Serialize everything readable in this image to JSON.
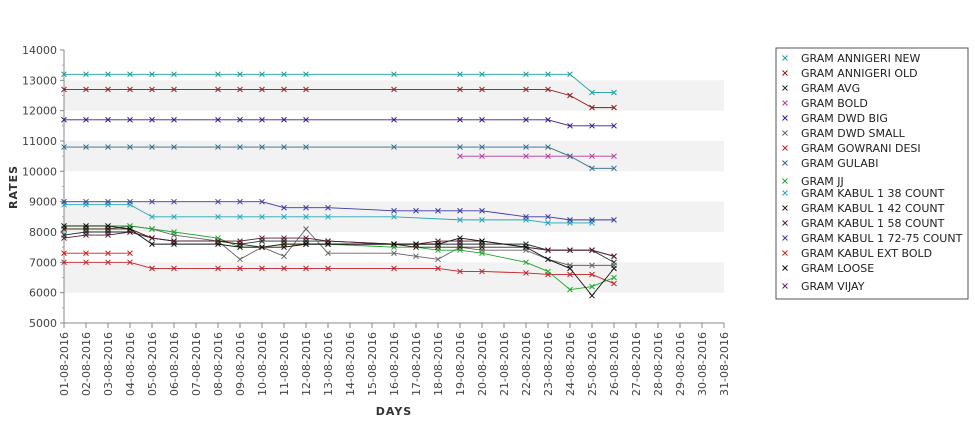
{
  "chart_data": {
    "type": "line",
    "title": "",
    "xlabel": "DAYS",
    "ylabel": "RATES",
    "ylim": [
      5000,
      14000
    ],
    "y_ticks": [
      5000,
      6000,
      7000,
      8000,
      9000,
      10000,
      11000,
      12000,
      13000,
      14000
    ],
    "grid": "alternating horizontal bands",
    "legend_position": "right",
    "categories": [
      "01-08-2016",
      "02-08-2016",
      "03-08-2016",
      "04-08-2016",
      "05-08-2016",
      "06-08-2016",
      "07-08-2016",
      "08-08-2016",
      "09-08-2016",
      "10-08-2016",
      "11-08-2016",
      "12-08-2016",
      "13-08-2016",
      "14-08-2016",
      "15-08-2016",
      "16-08-2016",
      "17-08-2016",
      "18-08-2016",
      "19-08-2016",
      "20-08-2016",
      "21-08-2016",
      "22-08-2016",
      "23-08-2016",
      "24-08-2016",
      "25-08-2016",
      "26-08-2016",
      "27-08-2016",
      "28-08-2016",
      "29-08-2016",
      "30-08-2016",
      "31-08-2016"
    ],
    "series": [
      {
        "name": "GRAM ANNIGERI NEW",
        "color": "#1a9e9e",
        "values": [
          13200,
          13200,
          13200,
          13200,
          13200,
          13200,
          null,
          13200,
          13200,
          13200,
          13200,
          13200,
          null,
          null,
          null,
          13200,
          null,
          null,
          13200,
          13200,
          null,
          13200,
          13200,
          13200,
          12600,
          12600,
          null,
          null,
          null,
          null,
          null
        ]
      },
      {
        "name": "GRAM ANNIGERI OLD",
        "color": "#8b1a1a",
        "values": [
          12700,
          12700,
          12700,
          12700,
          12700,
          12700,
          null,
          12700,
          12700,
          12700,
          12700,
          12700,
          null,
          null,
          null,
          12700,
          null,
          null,
          12700,
          12700,
          null,
          12700,
          12700,
          12500,
          12100,
          12100,
          null,
          null,
          null,
          null,
          null
        ]
      },
      {
        "name": "GRAM AVG",
        "color": "#1a3333",
        "values": [
          7900,
          8000,
          8000,
          8000,
          7800,
          7700,
          null,
          7700,
          7600,
          7700,
          7700,
          7700,
          7700,
          null,
          null,
          7600,
          7600,
          7600,
          7600,
          7600,
          null,
          7600,
          7400,
          7400,
          7400,
          7000,
          null,
          null,
          null,
          null,
          null
        ]
      },
      {
        "name": "GRAM BOLD",
        "color": "#b23a9c",
        "values": [
          null,
          null,
          null,
          null,
          null,
          null,
          null,
          null,
          null,
          null,
          null,
          null,
          null,
          null,
          null,
          null,
          null,
          null,
          10500,
          10500,
          null,
          10500,
          10500,
          10500,
          10500,
          10500,
          null,
          null,
          null,
          null,
          null
        ]
      },
      {
        "name": "GRAM DWD BIG",
        "color": "#3d1a8a",
        "values": [
          11700,
          11700,
          11700,
          11700,
          11700,
          11700,
          null,
          11700,
          11700,
          11700,
          11700,
          11700,
          null,
          null,
          null,
          11700,
          null,
          null,
          11700,
          11700,
          null,
          11700,
          11700,
          11500,
          11500,
          11500,
          null,
          null,
          null,
          null,
          null
        ]
      },
      {
        "name": "GRAM DWD SMALL",
        "color": "#666666",
        "values": [
          8100,
          8100,
          8100,
          8200,
          8100,
          7900,
          null,
          7700,
          7100,
          7500,
          7200,
          8100,
          7300,
          null,
          null,
          7300,
          7200,
          7100,
          7500,
          7400,
          null,
          7400,
          7100,
          6900,
          6900,
          6900,
          null,
          null,
          null,
          null,
          null
        ]
      },
      {
        "name": "GRAM GOWRANI DESI",
        "color": "#c0202a",
        "values": [
          7000,
          7000,
          7000,
          7000,
          6800,
          6800,
          null,
          6800,
          6800,
          6800,
          6800,
          6800,
          6800,
          null,
          null,
          6800,
          null,
          6800,
          6700,
          6700,
          null,
          6650,
          6600,
          6600,
          6600,
          6300,
          null,
          null,
          null,
          null,
          null
        ]
      },
      {
        "name": "GRAM GULABI",
        "color": "#2e6b8a",
        "values": [
          10800,
          10800,
          10800,
          10800,
          10800,
          10800,
          null,
          10800,
          10800,
          10800,
          10800,
          10800,
          null,
          null,
          null,
          10800,
          null,
          null,
          10800,
          10800,
          null,
          10800,
          10800,
          10500,
          10100,
          10100,
          null,
          null,
          null,
          null,
          null
        ]
      },
      {
        "name": "GRAM JJ",
        "color": "#1fa82a",
        "values": [
          8200,
          8200,
          8200,
          8200,
          8100,
          8000,
          null,
          7800,
          7500,
          7500,
          7600,
          7600,
          7600,
          null,
          null,
          7500,
          7500,
          7400,
          7400,
          7300,
          null,
          7000,
          6700,
          6100,
          6200,
          6500,
          null,
          null,
          null,
          null,
          null
        ]
      },
      {
        "name": "GRAM KABUL 1 38 COUNT",
        "color": "#22a6b8",
        "values": [
          8900,
          8900,
          8900,
          8900,
          8500,
          8500,
          null,
          8500,
          8500,
          8500,
          8500,
          8500,
          8500,
          null,
          null,
          8500,
          null,
          null,
          8400,
          8400,
          null,
          8400,
          8300,
          8300,
          8300,
          null,
          null,
          null,
          null,
          null,
          null
        ]
      },
      {
        "name": "GRAM KABUL 1 42 COUNT",
        "color": "#3a2010",
        "values": [
          8100,
          8100,
          8100,
          8100,
          7800,
          7700,
          null,
          7700,
          7600,
          7500,
          7600,
          7600,
          7600,
          null,
          null,
          7600,
          7500,
          7500,
          7500,
          7500,
          null,
          7500,
          7400,
          7400,
          7400,
          7200,
          null,
          null,
          null,
          null,
          null
        ]
      },
      {
        "name": "GRAM KABUL 1 58 COUNT",
        "color": "#5a1a30",
        "values": [
          7800,
          7900,
          7900,
          8000,
          7800,
          7700,
          null,
          7700,
          7700,
          7800,
          7800,
          7800,
          7700,
          null,
          null,
          7600,
          7600,
          7700,
          7700,
          7700,
          null,
          7500,
          7400,
          7400,
          7400,
          7200,
          null,
          null,
          null,
          null,
          null
        ]
      },
      {
        "name": "GRAM KABUL 1 72-75 COUNT",
        "color": "#3a3aa0",
        "values": [
          9000,
          9000,
          9000,
          9000,
          9000,
          9000,
          null,
          9000,
          9000,
          9000,
          8800,
          8800,
          8800,
          null,
          null,
          8700,
          8700,
          8700,
          8700,
          8700,
          null,
          8500,
          8500,
          8400,
          8400,
          8400,
          null,
          null,
          null,
          null,
          null
        ]
      },
      {
        "name": "GRAM KABUL EXT BOLD",
        "color": "#d0201a",
        "values": [
          7300,
          7300,
          7300,
          7300,
          null,
          null,
          null,
          null,
          null,
          null,
          null,
          null,
          null,
          null,
          null,
          null,
          null,
          null,
          null,
          null,
          null,
          null,
          null,
          null,
          null,
          null,
          null,
          null,
          null,
          null,
          null
        ]
      },
      {
        "name": "GRAM LOOSE",
        "color": "#111111",
        "values": [
          8200,
          8200,
          8200,
          8100,
          7600,
          7600,
          null,
          7600,
          7500,
          7500,
          7500,
          7600,
          7600,
          null,
          null,
          7600,
          7600,
          7600,
          7800,
          7700,
          null,
          7500,
          7100,
          6800,
          5900,
          6800,
          null,
          null,
          null,
          null,
          null
        ]
      },
      {
        "name": "GRAM VIJAY",
        "color": "#6a1a6a",
        "values": [
          null,
          null,
          null,
          null,
          null,
          null,
          null,
          null,
          null,
          null,
          null,
          null,
          null,
          null,
          null,
          null,
          null,
          null,
          null,
          null,
          null,
          null,
          null,
          null,
          null,
          null,
          null,
          null,
          null,
          null,
          null
        ]
      }
    ]
  }
}
